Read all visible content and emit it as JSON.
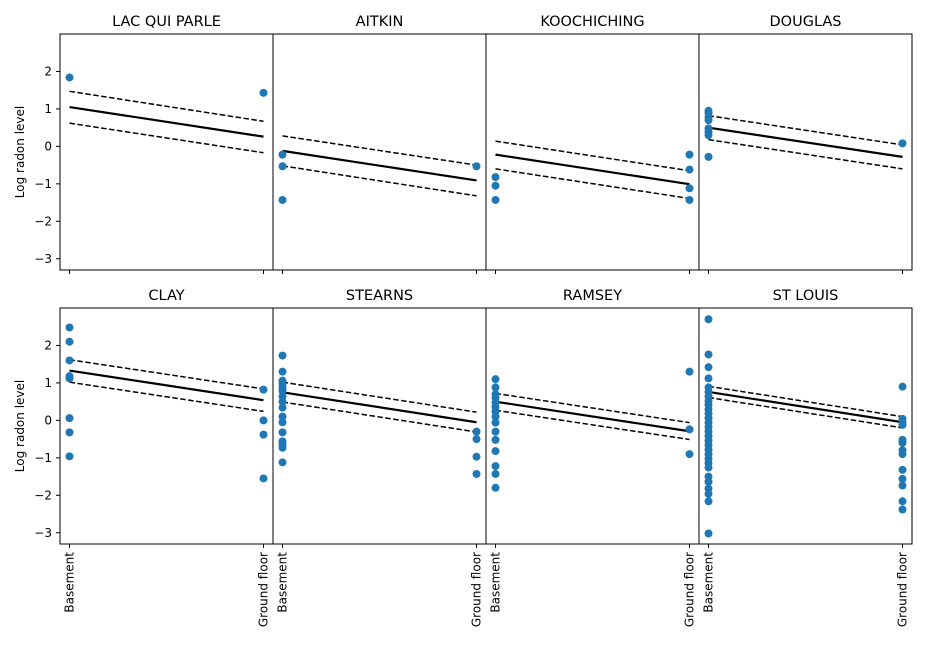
{
  "chart_data": {
    "type": "scatter",
    "layout": "2x4 panels, shared y axis",
    "ylabel": "Log radon level",
    "x_categories": [
      "Basement",
      "Ground floor"
    ],
    "x_values": [
      0,
      1
    ],
    "ylim": [
      -3.3,
      3.0
    ],
    "yticks": [
      -3,
      -2,
      -1,
      0,
      1,
      2
    ],
    "colors": {
      "points": "#1f77b4",
      "line": "#000000"
    },
    "panels": [
      {
        "title": "LAC QUI PARLE",
        "points": [
          [
            0,
            1.84
          ],
          [
            1,
            1.43
          ]
        ],
        "mean": [
          1.05,
          0.26
        ],
        "upper": [
          1.47,
          0.67
        ],
        "lower": [
          0.62,
          -0.17
        ]
      },
      {
        "title": "AITKIN",
        "points": [
          [
            0,
            -0.22
          ],
          [
            0,
            -0.53
          ],
          [
            0,
            -1.43
          ],
          [
            1,
            -0.53
          ]
        ],
        "mean": [
          -0.12,
          -0.91
        ],
        "upper": [
          0.28,
          -0.5
        ],
        "lower": [
          -0.52,
          -1.32
        ]
      },
      {
        "title": "KOOCHICHING",
        "points": [
          [
            0,
            -0.82
          ],
          [
            0,
            -1.05
          ],
          [
            0,
            -1.43
          ],
          [
            1,
            -0.22
          ],
          [
            1,
            -0.62
          ],
          [
            1,
            -1.12
          ],
          [
            1,
            -1.43
          ]
        ],
        "mean": [
          -0.22,
          -1.01
        ],
        "upper": [
          0.14,
          -0.65
        ],
        "lower": [
          -0.6,
          -1.39
        ]
      },
      {
        "title": "DOUGLAS",
        "points": [
          [
            0,
            0.95
          ],
          [
            0,
            0.88
          ],
          [
            0,
            0.78
          ],
          [
            0,
            0.7
          ],
          [
            0,
            0.48
          ],
          [
            0,
            0.38
          ],
          [
            0,
            0.3
          ],
          [
            0,
            -0.28
          ],
          [
            1,
            0.08
          ]
        ],
        "mean": [
          0.5,
          -0.28
        ],
        "upper": [
          0.82,
          0.04
        ],
        "lower": [
          0.18,
          -0.6
        ]
      },
      {
        "title": "CLAY",
        "points": [
          [
            0,
            2.48
          ],
          [
            0,
            2.1
          ],
          [
            0,
            1.6
          ],
          [
            0,
            1.18
          ],
          [
            0,
            1.12
          ],
          [
            0,
            0.06
          ],
          [
            0,
            -0.32
          ],
          [
            0,
            -0.96
          ],
          [
            1,
            0.82
          ],
          [
            1,
            0.0
          ],
          [
            1,
            -0.38
          ],
          [
            1,
            -1.55
          ]
        ],
        "mean": [
          1.33,
          0.54
        ],
        "upper": [
          1.62,
          0.84
        ],
        "lower": [
          1.02,
          0.24
        ]
      },
      {
        "title": "STEARNS",
        "points": [
          [
            0,
            1.73
          ],
          [
            0,
            1.3
          ],
          [
            0,
            1.06
          ],
          [
            0,
            0.98
          ],
          [
            0,
            0.88
          ],
          [
            0,
            0.79
          ],
          [
            0,
            0.64
          ],
          [
            0,
            0.5
          ],
          [
            0,
            0.34
          ],
          [
            0,
            0.1
          ],
          [
            0,
            -0.05
          ],
          [
            0,
            -0.32
          ],
          [
            0,
            -0.56
          ],
          [
            0,
            -0.64
          ],
          [
            0,
            -0.73
          ],
          [
            0,
            -1.12
          ],
          [
            1,
            -0.3
          ],
          [
            1,
            -0.5
          ],
          [
            1,
            -0.97
          ],
          [
            1,
            -1.43
          ]
        ],
        "mean": [
          0.75,
          -0.05
        ],
        "upper": [
          1.02,
          0.22
        ],
        "lower": [
          0.49,
          -0.31
        ]
      },
      {
        "title": "RAMSEY",
        "points": [
          [
            0,
            1.1
          ],
          [
            0,
            0.88
          ],
          [
            0,
            0.7
          ],
          [
            0,
            0.6
          ],
          [
            0,
            0.48
          ],
          [
            0,
            0.36
          ],
          [
            0,
            0.24
          ],
          [
            0,
            0.1
          ],
          [
            0,
            -0.06
          ],
          [
            0,
            -0.3
          ],
          [
            0,
            -0.52
          ],
          [
            0,
            -0.82
          ],
          [
            0,
            -1.22
          ],
          [
            0,
            -1.43
          ],
          [
            0,
            -1.8
          ],
          [
            1,
            1.3
          ],
          [
            1,
            -0.24
          ],
          [
            1,
            -0.9
          ]
        ],
        "mean": [
          0.5,
          -0.29
        ],
        "upper": [
          0.72,
          -0.06
        ],
        "lower": [
          0.27,
          -0.51
        ]
      },
      {
        "title": "ST LOUIS",
        "points": [
          [
            0,
            2.7
          ],
          [
            0,
            1.76
          ],
          [
            0,
            1.42
          ],
          [
            0,
            1.12
          ],
          [
            0,
            0.88
          ],
          [
            0,
            0.76
          ],
          [
            0,
            0.64
          ],
          [
            0,
            0.52
          ],
          [
            0,
            0.42
          ],
          [
            0,
            0.3
          ],
          [
            0,
            0.18
          ],
          [
            0,
            0.06
          ],
          [
            0,
            -0.06
          ],
          [
            0,
            -0.18
          ],
          [
            0,
            -0.3
          ],
          [
            0,
            -0.42
          ],
          [
            0,
            -0.54
          ],
          [
            0,
            -0.66
          ],
          [
            0,
            -0.78
          ],
          [
            0,
            -0.9
          ],
          [
            0,
            -1.02
          ],
          [
            0,
            -1.14
          ],
          [
            0,
            -1.26
          ],
          [
            0,
            -1.5
          ],
          [
            0,
            -1.64
          ],
          [
            0,
            -1.82
          ],
          [
            0,
            -1.96
          ],
          [
            0,
            -2.16
          ],
          [
            0,
            -3.02
          ],
          [
            1,
            0.9
          ],
          [
            1,
            0.04
          ],
          [
            1,
            -0.04
          ],
          [
            1,
            -0.12
          ],
          [
            1,
            -0.52
          ],
          [
            1,
            -0.6
          ],
          [
            1,
            -0.8
          ],
          [
            1,
            -0.9
          ],
          [
            1,
            -1.32
          ],
          [
            1,
            -1.56
          ],
          [
            1,
            -1.74
          ],
          [
            1,
            -2.16
          ],
          [
            1,
            -2.38
          ]
        ],
        "mean": [
          0.76,
          -0.05
        ],
        "upper": [
          0.91,
          0.1
        ],
        "lower": [
          0.61,
          -0.2
        ]
      }
    ]
  }
}
